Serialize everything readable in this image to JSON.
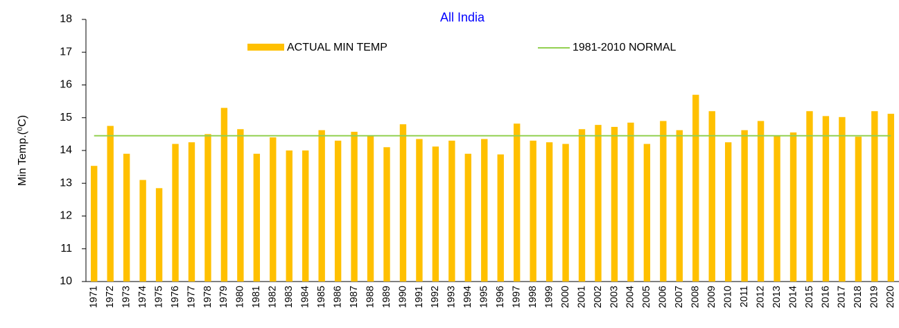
{
  "chart_data": {
    "type": "bar",
    "title": "All India",
    "y_label": "Min Temp.(⁰C)",
    "categories": [
      "1971",
      "1972",
      "1973",
      "1974",
      "1975",
      "1976",
      "1977",
      "1978",
      "1979",
      "1980",
      "1981",
      "1982",
      "1983",
      "1984",
      "1985",
      "1986",
      "1987",
      "1988",
      "1989",
      "1990",
      "1991",
      "1992",
      "1993",
      "1994",
      "1995",
      "1996",
      "1997",
      "1998",
      "1999",
      "2000",
      "2001",
      "2002",
      "2003",
      "2004",
      "2005",
      "2006",
      "2007",
      "2008",
      "2009",
      "2010",
      "2011",
      "2012",
      "2013",
      "2014",
      "2015",
      "2016",
      "2017",
      "2018",
      "2019",
      "2020"
    ],
    "series": [
      {
        "name": "ACTUAL MIN TEMP",
        "type": "bar",
        "color": "#ffc000",
        "values": [
          13.53,
          14.75,
          13.9,
          13.1,
          12.85,
          14.2,
          14.25,
          14.5,
          15.3,
          14.65,
          13.9,
          14.4,
          14.0,
          14.0,
          14.62,
          14.3,
          14.57,
          14.45,
          14.1,
          14.8,
          14.35,
          14.12,
          14.3,
          13.9,
          14.35,
          13.88,
          14.82,
          14.3,
          14.25,
          14.2,
          14.65,
          14.78,
          14.72,
          14.85,
          14.2,
          14.9,
          14.62,
          15.7,
          15.2,
          14.25,
          14.62,
          14.9,
          14.45,
          14.55,
          15.2,
          15.05,
          15.02,
          14.42,
          15.2,
          15.12
        ]
      },
      {
        "name": "1981-2010 NORMAL",
        "type": "line",
        "color": "#92d050",
        "values": [
          14.45,
          14.45,
          14.45,
          14.45,
          14.45,
          14.45,
          14.45,
          14.45,
          14.45,
          14.45,
          14.45,
          14.45,
          14.45,
          14.45,
          14.45,
          14.45,
          14.45,
          14.45,
          14.45,
          14.45,
          14.45,
          14.45,
          14.45,
          14.45,
          14.45,
          14.45,
          14.45,
          14.45,
          14.45,
          14.45,
          14.45,
          14.45,
          14.45,
          14.45,
          14.45,
          14.45,
          14.45,
          14.45,
          14.45,
          14.45,
          14.45,
          14.45,
          14.45,
          14.45,
          14.45,
          14.45,
          14.45,
          14.45,
          14.45,
          14.45
        ]
      }
    ],
    "ylim": [
      10,
      18
    ],
    "yticks": [
      10,
      11,
      12,
      13,
      14,
      15,
      16,
      17,
      18
    ],
    "grid": false
  }
}
